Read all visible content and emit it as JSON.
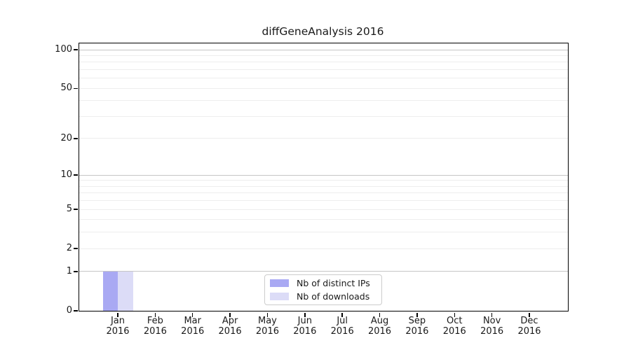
{
  "title": "diffGeneAnalysis 2016",
  "chart_data": {
    "type": "bar",
    "title": "diffGeneAnalysis 2016",
    "categories": [
      {
        "month": "Jan",
        "year": "2016"
      },
      {
        "month": "Feb",
        "year": "2016"
      },
      {
        "month": "Mar",
        "year": "2016"
      },
      {
        "month": "Apr",
        "year": "2016"
      },
      {
        "month": "May",
        "year": "2016"
      },
      {
        "month": "Jun",
        "year": "2016"
      },
      {
        "month": "Jul",
        "year": "2016"
      },
      {
        "month": "Aug",
        "year": "2016"
      },
      {
        "month": "Sep",
        "year": "2016"
      },
      {
        "month": "Oct",
        "year": "2016"
      },
      {
        "month": "Nov",
        "year": "2016"
      },
      {
        "month": "Dec",
        "year": "2016"
      }
    ],
    "series": [
      {
        "name": "Nb of distinct IPs",
        "color": "#a9a9f3",
        "values": [
          1,
          0,
          0,
          0,
          0,
          0,
          0,
          0,
          0,
          0,
          0,
          0
        ]
      },
      {
        "name": "Nb of downloads",
        "color": "#dcdcf7",
        "values": [
          1,
          0,
          0,
          0,
          0,
          0,
          0,
          0,
          0,
          0,
          0,
          0
        ]
      }
    ],
    "xlabel": "",
    "ylabel": "",
    "yscale": "log1p",
    "ylim": [
      0,
      112
    ],
    "yticks": [
      0,
      1,
      2,
      5,
      10,
      20,
      50,
      100
    ],
    "grid": {
      "major_lines": [
        1,
        10,
        100
      ],
      "minor_lines": [
        2,
        3,
        4,
        5,
        6,
        7,
        8,
        9,
        20,
        30,
        40,
        50,
        60,
        70,
        80,
        90
      ],
      "major_color": "#c6c6c6",
      "minor_color": "#ededed"
    },
    "legend_position": "lower center"
  }
}
